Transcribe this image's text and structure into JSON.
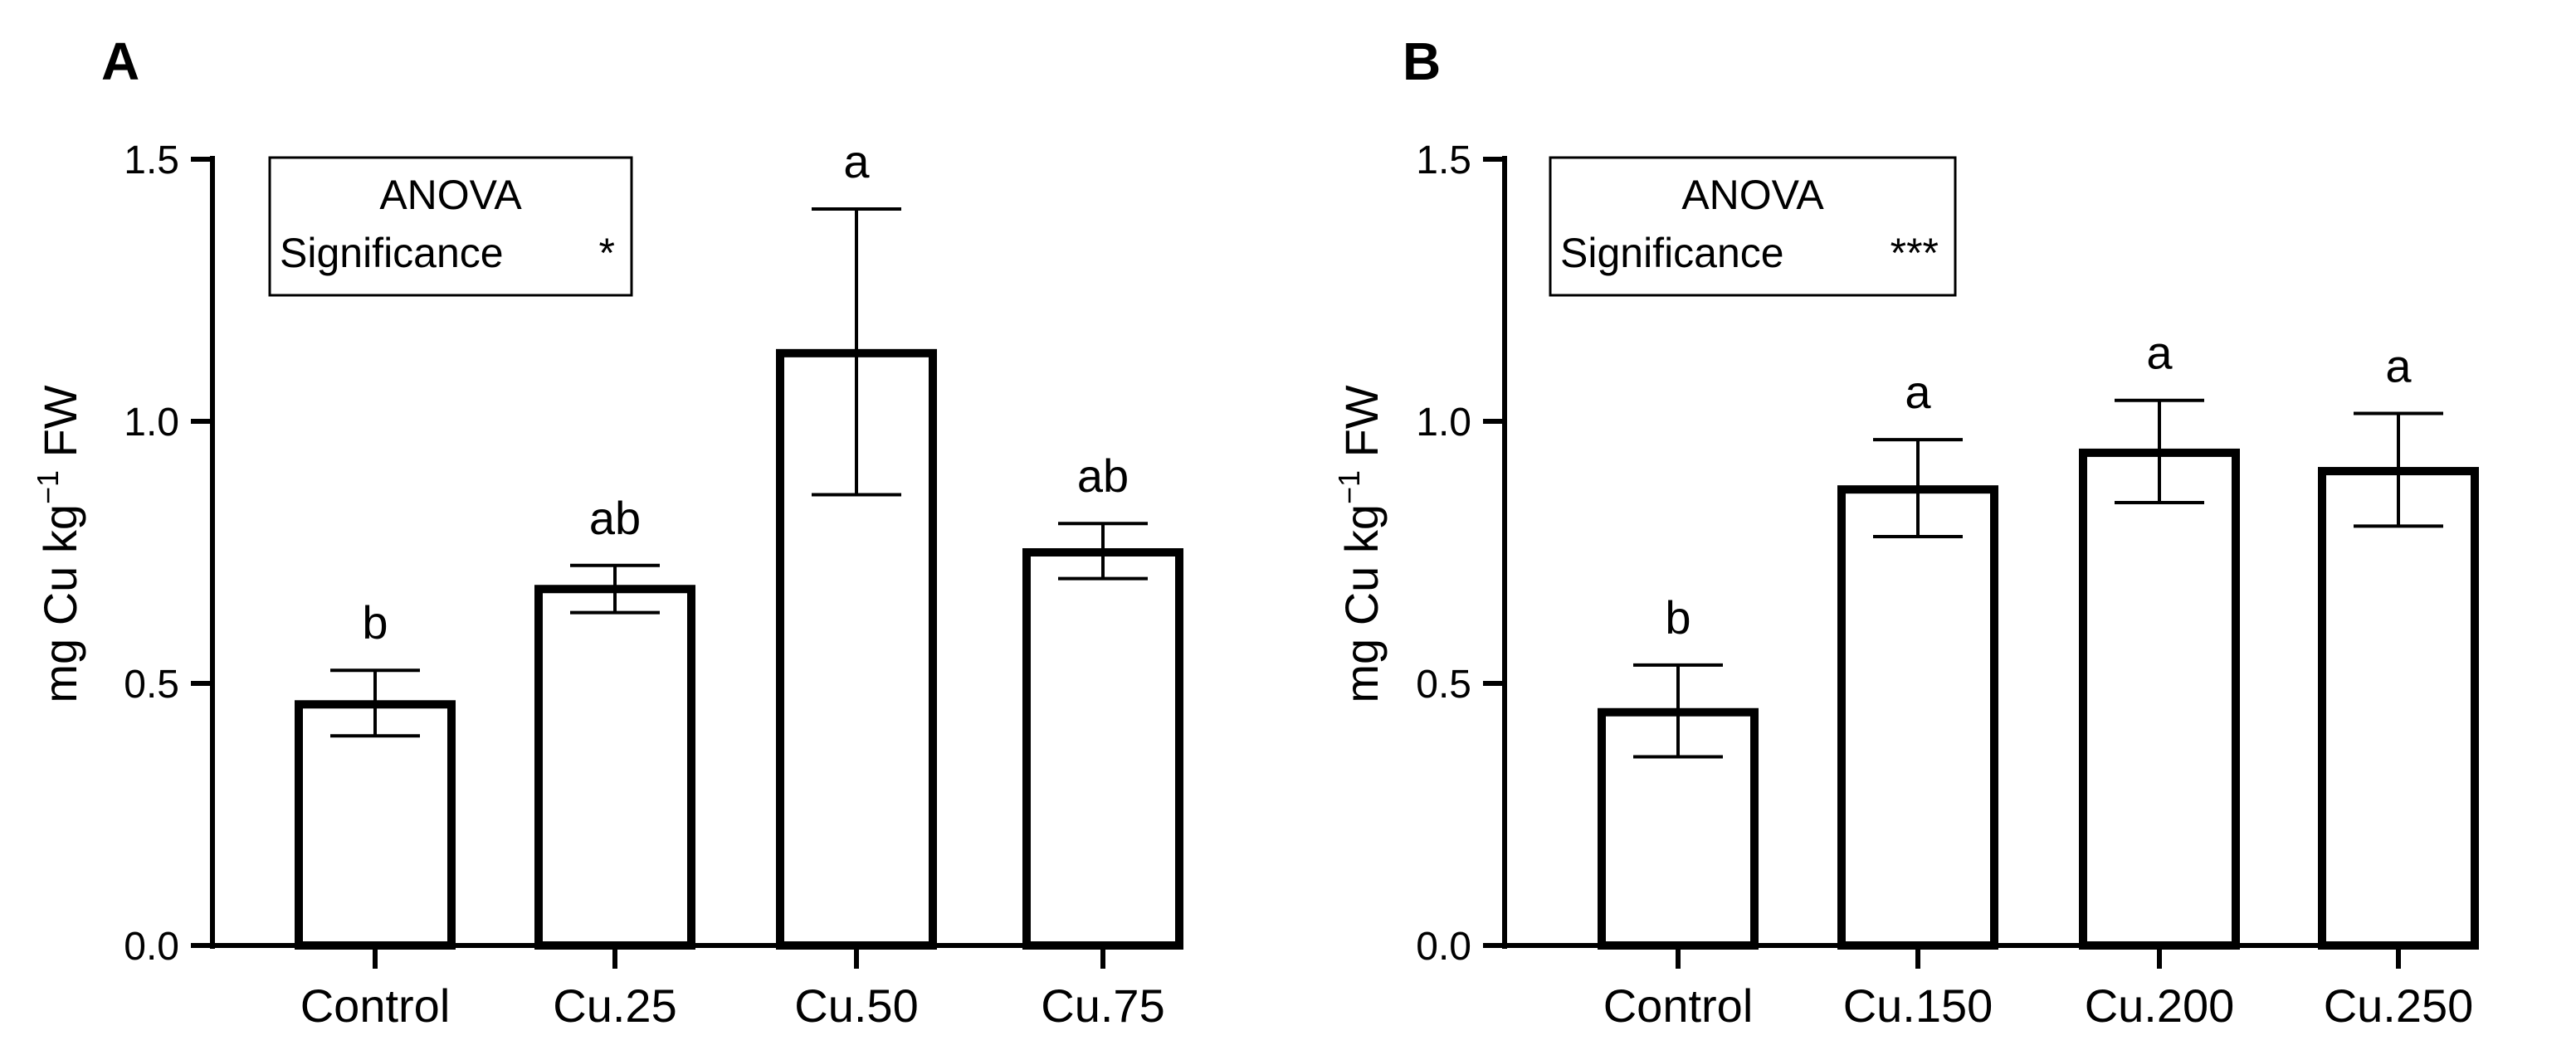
{
  "chart_data": [
    {
      "type": "bar",
      "panel": "A",
      "categories": [
        "Control",
        "Cu.25",
        "Cu.50",
        "Cu.75"
      ],
      "values": [
        0.46,
        0.68,
        1.13,
        0.75
      ],
      "error_high": [
        0.525,
        0.725,
        1.405,
        0.805
      ],
      "error_low": [
        0.4,
        0.635,
        0.86,
        0.7
      ],
      "significance_letters": [
        "b",
        "ab",
        "a",
        "ab"
      ],
      "ylabel": "mg Cu kg",
      "ylabel_sup": "−1",
      "ylabel_suffix": " FW",
      "ylim": [
        0,
        1.5
      ],
      "yticks": [
        "0.0",
        "0.5",
        "1.0",
        "1.5"
      ],
      "ytick_values": [
        0,
        0.5,
        1.0,
        1.5
      ],
      "anova": {
        "line1": "ANOVA",
        "line2": "Significance",
        "stars": "*"
      }
    },
    {
      "type": "bar",
      "panel": "B",
      "categories": [
        "Control",
        "Cu.150",
        "Cu.200",
        "Cu.250"
      ],
      "values": [
        0.445,
        0.87,
        0.94,
        0.905
      ],
      "error_high": [
        0.535,
        0.965,
        1.04,
        1.015
      ],
      "error_low": [
        0.36,
        0.78,
        0.845,
        0.8
      ],
      "significance_letters": [
        "b",
        "a",
        "a",
        "a"
      ],
      "ylabel": "mg Cu kg",
      "ylabel_sup": "−1",
      "ylabel_suffix": " FW",
      "ylim": [
        0,
        1.5
      ],
      "yticks": [
        "0.0",
        "0.5",
        "1.0",
        "1.5"
      ],
      "ytick_values": [
        0,
        0.5,
        1.0,
        1.5
      ],
      "anova": {
        "line1": "ANOVA",
        "line2": "Significance",
        "stars": "***"
      }
    }
  ],
  "colors": {
    "ink": "#000000",
    "bar_fill": "#ffffff",
    "background": "#ffffff"
  }
}
